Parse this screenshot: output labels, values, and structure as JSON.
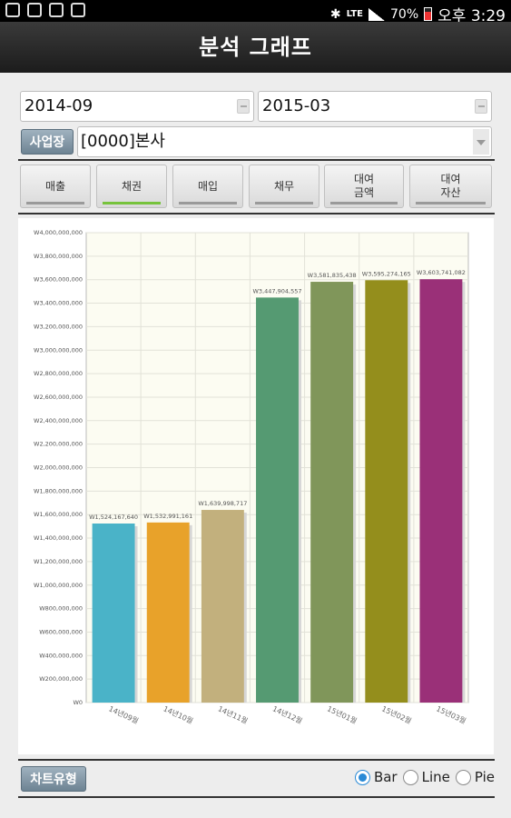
{
  "status_bar": {
    "battery": "70%",
    "time": "오후 3:29",
    "network": "LTE"
  },
  "header": {
    "title": "분석 그래프"
  },
  "filters": {
    "start_date": "2014-09",
    "end_date": "2015-03",
    "site_label": "사업장",
    "site_value": "[0000]본사"
  },
  "tabs": [
    {
      "label": "매출",
      "active": false
    },
    {
      "label": "채권",
      "active": true
    },
    {
      "label": "매입",
      "active": false
    },
    {
      "label": "채무",
      "active": false
    },
    {
      "label": "대여\n금액",
      "active": false
    },
    {
      "label": "대여\n자산",
      "active": false
    }
  ],
  "chart_data": {
    "type": "bar",
    "categories": [
      "14년09월",
      "14년10월",
      "14년11월",
      "14년12월",
      "15년01월",
      "15년02월",
      "15년03월"
    ],
    "values": [
      1524167640,
      1532991161,
      1639998717,
      3447904557,
      3581835438,
      3595274165,
      3603741082
    ],
    "value_labels": [
      "W1,524,167,640",
      "W1,532,991,161",
      "W1,639,998,717",
      "W3,447,904,557",
      "W3,581,835,438",
      "W3,595,274,165",
      "W3,603,741,082"
    ],
    "colors": [
      "#4ab3c8",
      "#e8a22a",
      "#c2b07d",
      "#559a72",
      "#80965a",
      "#948e1c",
      "#9a3078"
    ],
    "ylim": [
      0,
      4000000000
    ],
    "yticks": [
      "W0",
      "W200,000,000",
      "W400,000,000",
      "W600,000,000",
      "W800,000,000",
      "W1,000,000,000",
      "W1,200,000,000",
      "W1,400,000,000",
      "W1,600,000,000",
      "W1,800,000,000",
      "W2,000,000,000",
      "W2,200,000,000",
      "W2,400,000,000",
      "W2,600,000,000",
      "W2,800,000,000",
      "W3,000,000,000",
      "W3,200,000,000",
      "W3,400,000,000",
      "W3,600,000,000",
      "W3,800,000,000",
      "W4,000,000,000"
    ],
    "grid": true,
    "title": "",
    "xlabel": "",
    "ylabel": ""
  },
  "chart_controls": {
    "chart_type_label": "차트유형",
    "options": [
      {
        "label": "Bar",
        "checked": true
      },
      {
        "label": "Line",
        "checked": false
      },
      {
        "label": "Pie",
        "checked": false
      }
    ]
  }
}
